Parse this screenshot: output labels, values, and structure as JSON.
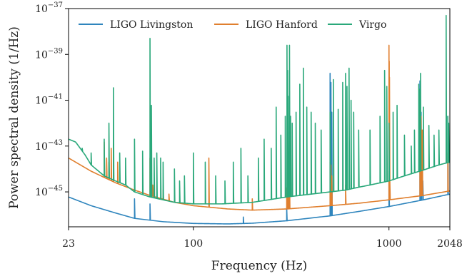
{
  "chart_data": {
    "type": "line",
    "title": "",
    "xlabel": "Frequency (Hz)",
    "ylabel": "Power spectral density (1/Hz)",
    "xscale": "log",
    "yscale": "log",
    "xlim": [
      23,
      2048
    ],
    "ylim": [
      3e-47,
      1e-37
    ],
    "x_ticks": [
      {
        "value": 23,
        "label": "23"
      },
      {
        "value": 100,
        "label": "100"
      },
      {
        "value": 1000,
        "label": "1000"
      },
      {
        "value": 2048,
        "label": "2048"
      }
    ],
    "y_ticks": [
      {
        "value": 1e-45,
        "base": "10",
        "exp": "−45"
      },
      {
        "value": 1e-43,
        "base": "10",
        "exp": "−43"
      },
      {
        "value": 1e-41,
        "base": "10",
        "exp": "−41"
      },
      {
        "value": 1e-39,
        "base": "10",
        "exp": "−39"
      },
      {
        "value": 1e-37,
        "base": "10",
        "exp": "−37"
      }
    ],
    "grid": false,
    "legend_position": "top",
    "series": [
      {
        "name": "LIGO Livingston",
        "color": "#2f85bd",
        "baseline": [
          [
            23,
            6e-46
          ],
          [
            30,
            2.5e-46
          ],
          [
            40,
            1.2e-46
          ],
          [
            50,
            7e-47
          ],
          [
            70,
            5e-47
          ],
          [
            100,
            4.2e-47
          ],
          [
            150,
            4e-47
          ],
          [
            200,
            4.3e-47
          ],
          [
            300,
            5.5e-47
          ],
          [
            500,
            9e-47
          ],
          [
            700,
            1.4e-46
          ],
          [
            1000,
            2.3e-46
          ],
          [
            1500,
            4.5e-46
          ],
          [
            2048,
            8e-46
          ]
        ],
        "lines": [
          [
            50,
            5e-46
          ],
          [
            60,
            3e-46
          ],
          [
            180,
            8e-47
          ],
          [
            300,
            2e-46
          ],
          [
            500,
            1.5e-40
          ],
          [
            505,
            6e-41
          ],
          [
            510,
            3e-42
          ],
          [
            1000,
            8e-45
          ],
          [
            1440,
            7e-41
          ],
          [
            1460,
            3e-42
          ],
          [
            1490,
            3e-45
          ],
          [
            2000,
            2e-42
          ]
        ]
      },
      {
        "name": "LIGO Hanford",
        "color": "#e07f2e",
        "baseline": [
          [
            23,
            3e-44
          ],
          [
            30,
            8e-45
          ],
          [
            40,
            2.5e-45
          ],
          [
            50,
            1.2e-45
          ],
          [
            60,
            7e-46
          ],
          [
            80,
            3.5e-46
          ],
          [
            100,
            2.5e-46
          ],
          [
            150,
            1.8e-46
          ],
          [
            200,
            1.6e-46
          ],
          [
            300,
            1.8e-46
          ],
          [
            500,
            2.5e-46
          ],
          [
            700,
            3.2e-46
          ],
          [
            1000,
            4.5e-46
          ],
          [
            1500,
            7e-46
          ],
          [
            2048,
            1.1e-45
          ]
        ],
        "lines": [
          [
            35,
            1.5e-43
          ],
          [
            36,
            3e-44
          ],
          [
            37,
            2e-44
          ],
          [
            38,
            8e-44
          ],
          [
            39,
            1.2e-43
          ],
          [
            41,
            2e-44
          ],
          [
            60,
            3e-44
          ],
          [
            61,
            6e-45
          ],
          [
            62,
            2e-45
          ],
          [
            70,
            1.2e-45
          ],
          [
            75,
            8e-46
          ],
          [
            90,
            5e-46
          ],
          [
            120,
            3e-44
          ],
          [
            200,
            5e-46
          ],
          [
            300,
            1.5e-45
          ],
          [
            303,
            3e-45
          ],
          [
            306,
            1e-44
          ],
          [
            310,
            8e-45
          ],
          [
            500,
            2e-44
          ],
          [
            505,
            1.5e-44
          ],
          [
            510,
            5e-45
          ],
          [
            600,
            2e-45
          ],
          [
            1000,
            2.5e-39
          ],
          [
            1003,
            5e-40
          ],
          [
            1006,
            1e-40
          ],
          [
            1010,
            3e-45
          ],
          [
            1440,
            2e-41
          ],
          [
            1445,
            5e-42
          ],
          [
            1460,
            2e-42
          ],
          [
            1480,
            5e-43
          ],
          [
            2000,
            5e-44
          ]
        ]
      },
      {
        "name": "Virgo",
        "color": "#2aa87a",
        "baseline": [
          [
            23,
            2e-43
          ],
          [
            25,
            1.5e-43
          ],
          [
            28,
            4e-44
          ],
          [
            30,
            1.5e-44
          ],
          [
            35,
            5e-45
          ],
          [
            40,
            3e-45
          ],
          [
            45,
            2e-45
          ],
          [
            50,
            1e-45
          ],
          [
            60,
            6e-46
          ],
          [
            70,
            4.5e-46
          ],
          [
            80,
            3.5e-46
          ],
          [
            100,
            3e-46
          ],
          [
            140,
            3e-46
          ],
          [
            200,
            3.5e-46
          ],
          [
            300,
            6e-46
          ],
          [
            400,
            8e-46
          ],
          [
            500,
            1e-45
          ],
          [
            600,
            1.2e-45
          ],
          [
            700,
            1.6e-45
          ],
          [
            800,
            2e-45
          ],
          [
            1000,
            3e-45
          ],
          [
            1200,
            5e-45
          ],
          [
            1500,
            9e-45
          ],
          [
            1800,
            1.5e-44
          ],
          [
            2048,
            2e-44
          ]
        ],
        "lines": [
          [
            27,
            8e-44
          ],
          [
            30,
            5e-44
          ],
          [
            35,
            2e-43
          ],
          [
            37,
            1e-42
          ],
          [
            39,
            3.5e-41
          ],
          [
            42,
            5e-44
          ],
          [
            45,
            3e-44
          ],
          [
            50,
            2e-43
          ],
          [
            55,
            6e-44
          ],
          [
            60,
            5e-39
          ],
          [
            61,
            6e-42
          ],
          [
            63,
            3e-44
          ],
          [
            65,
            5e-44
          ],
          [
            68,
            3e-44
          ],
          [
            70,
            2e-44
          ],
          [
            80,
            1e-44
          ],
          [
            85,
            3e-45
          ],
          [
            90,
            5e-45
          ],
          [
            100,
            5e-44
          ],
          [
            115,
            2e-44
          ],
          [
            130,
            5e-45
          ],
          [
            145,
            3e-45
          ],
          [
            160,
            2e-44
          ],
          [
            175,
            8e-44
          ],
          [
            190,
            5e-45
          ],
          [
            215,
            3e-44
          ],
          [
            230,
            2e-43
          ],
          [
            250,
            8e-44
          ],
          [
            265,
            5e-42
          ],
          [
            280,
            3e-43
          ],
          [
            295,
            2e-42
          ],
          [
            301,
            2.5e-39
          ],
          [
            303,
            2e-40
          ],
          [
            305,
            1.5e-41
          ],
          [
            310,
            2.5e-39
          ],
          [
            314,
            2e-42
          ],
          [
            320,
            1e-42
          ],
          [
            335,
            3e-42
          ],
          [
            350,
            5e-41
          ],
          [
            365,
            2.5e-40
          ],
          [
            380,
            5e-42
          ],
          [
            400,
            3e-42
          ],
          [
            420,
            1e-42
          ],
          [
            450,
            5e-43
          ],
          [
            500,
            3e-42
          ],
          [
            520,
            8e-41
          ],
          [
            550,
            4e-42
          ],
          [
            580,
            6e-41
          ],
          [
            600,
            1.5e-40
          ],
          [
            610,
            4e-41
          ],
          [
            625,
            2.5e-40
          ],
          [
            640,
            1e-41
          ],
          [
            660,
            3e-42
          ],
          [
            700,
            5e-43
          ],
          [
            800,
            5e-43
          ],
          [
            900,
            2e-42
          ],
          [
            950,
            2e-40
          ],
          [
            975,
            4e-41
          ],
          [
            1000,
            1e-42
          ],
          [
            1050,
            3e-42
          ],
          [
            1100,
            6e-42
          ],
          [
            1200,
            3e-43
          ],
          [
            1300,
            1e-43
          ],
          [
            1350,
            5e-43
          ],
          [
            1420,
            5e-41
          ],
          [
            1430,
            3e-41
          ],
          [
            1450,
            1.5e-40
          ],
          [
            1500,
            5e-42
          ],
          [
            1600,
            8e-43
          ],
          [
            1700,
            3e-43
          ],
          [
            1800,
            5e-43
          ],
          [
            1960,
            5e-38
          ],
          [
            2000,
            2e-42
          ],
          [
            2020,
            1e-42
          ]
        ]
      }
    ]
  }
}
